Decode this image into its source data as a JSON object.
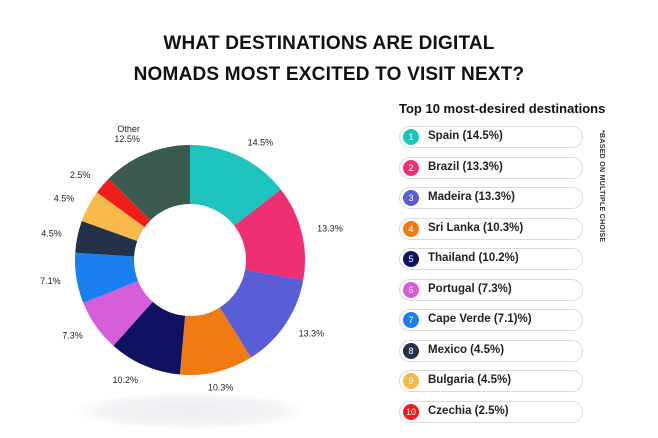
{
  "title": {
    "line1": "WHAT DESTINATIONS ARE DIGITAL",
    "line2": "NOMADS MOST EXCITED TO VISIT NEXT?"
  },
  "legend": {
    "title": "Top 10 most-desired destinations",
    "footnote": "*BASED ON MULTIPLE CHOISE",
    "items": [
      {
        "num": "1",
        "label": "Spain (14.5%)"
      },
      {
        "num": "2",
        "label": "Brazil (13.3%)"
      },
      {
        "num": "3",
        "label": "Madeira (13.3%)"
      },
      {
        "num": "4",
        "label": "Sri Lanka (10.3%)"
      },
      {
        "num": "5",
        "label": "Thailand (10.2%)"
      },
      {
        "num": "6",
        "label": "Portugal (7.3%)"
      },
      {
        "num": "7",
        "label": "Cape Verde (7.1)%)"
      },
      {
        "num": "8",
        "label": "Mexico (4.5%)"
      },
      {
        "num": "9",
        "label": "Bulgaria (4.5%)"
      },
      {
        "num": "10",
        "label": "Czechia (2.5%)"
      }
    ]
  },
  "chart_data": {
    "type": "pie",
    "donut": true,
    "categories": [
      "Spain",
      "Brazil",
      "Madeira",
      "Sri Lanka",
      "Thailand",
      "Portugal",
      "Cape Verde",
      "Mexico",
      "Bulgaria",
      "Czechia",
      "Other"
    ],
    "values": [
      14.5,
      13.3,
      13.3,
      10.3,
      10.2,
      7.3,
      7.1,
      4.5,
      4.5,
      2.5,
      12.5
    ],
    "labels": [
      "14.5%",
      "13.3%",
      "13.3%",
      "10.3%",
      "10.2%",
      "7.3%",
      "7.1%",
      "4.5%",
      "4.5%",
      "2.5%",
      "12.5%"
    ],
    "other_label": "Other",
    "colors": [
      "#1fc3be",
      "#ee2f73",
      "#5a5ed6",
      "#f07b12",
      "#0f1163",
      "#d65ed8",
      "#1a7ff0",
      "#23324a",
      "#f6b94a",
      "#f01c1c",
      "#3a5a50"
    ],
    "legend_placement": "right"
  }
}
